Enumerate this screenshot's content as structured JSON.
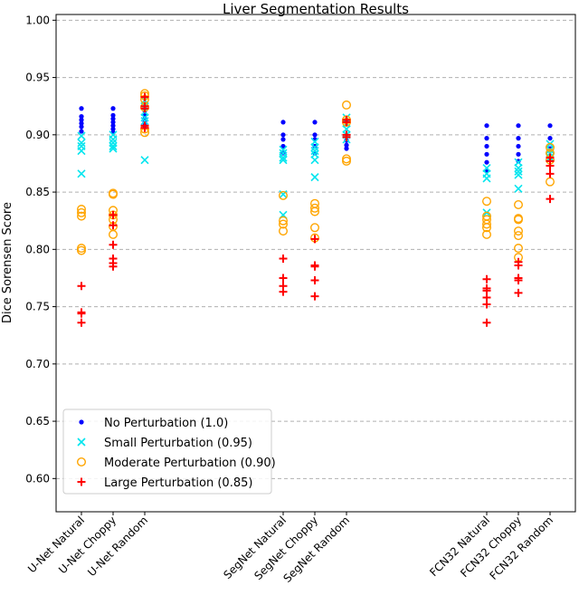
{
  "chart_data": {
    "type": "scatter",
    "title": "Liver Segmentation Results",
    "xlabel": "",
    "ylabel": "Dice Sorensen Score",
    "ylim": [
      0.571,
      1.005
    ],
    "yticks": [
      "0.60",
      "0.65",
      "0.70",
      "0.75",
      "0.80",
      "0.85",
      "0.90",
      "0.95",
      "1.00"
    ],
    "grid": "horizontal dashed",
    "legend_position": "bottom-left",
    "categories": [
      "U-Net Natural",
      "U-Net Choppy",
      "U-Net Random",
      "SegNet Natural",
      "SegNet Choppy",
      "SegNet Random",
      "FCN32 Natural",
      "FCN32 Choppy",
      "FCN32 Random"
    ],
    "series": [
      {
        "name": "No Perturbation (1.0)",
        "marker": "dot",
        "color": "#0000ff",
        "values": [
          [
            0.923,
            0.916,
            0.913,
            0.91,
            0.907,
            0.903
          ],
          [
            0.923,
            0.917,
            0.914,
            0.911,
            0.908,
            0.905,
            0.902
          ],
          [
            0.921,
            0.918,
            0.914,
            0.911,
            0.908
          ],
          [
            0.911,
            0.9,
            0.896,
            0.89,
            0.884
          ],
          [
            0.911,
            0.9,
            0.896,
            0.89,
            0.884
          ],
          [
            0.912,
            0.895,
            0.891,
            0.888
          ],
          [
            0.908,
            0.897,
            0.89,
            0.883,
            0.876,
            0.869
          ],
          [
            0.908,
            0.897,
            0.89,
            0.883,
            0.877
          ],
          [
            0.908,
            0.897,
            0.888
          ]
        ]
      },
      {
        "name": "Small Perturbation (0.95)",
        "marker": "x",
        "color": "#00e5ee",
        "values": [
          [
            0.899,
            0.893,
            0.89,
            0.886,
            0.866
          ],
          [
            0.9,
            0.896,
            0.893,
            0.89,
            0.888
          ],
          [
            0.93,
            0.925,
            0.92,
            0.915,
            0.912,
            0.878
          ],
          [
            0.887,
            0.884,
            0.88,
            0.878,
            0.848,
            0.83
          ],
          [
            0.894,
            0.889,
            0.886,
            0.883,
            0.878,
            0.863
          ],
          [
            0.915,
            0.91,
            0.905,
            0.9,
            0.896
          ],
          [
            0.871,
            0.866,
            0.862,
            0.832
          ],
          [
            0.876,
            0.871,
            0.868,
            0.865,
            0.853
          ],
          [
            0.892,
            0.887,
            0.884,
            0.88
          ]
        ]
      },
      {
        "name": "Moderate Perturbation (0.90)",
        "marker": "circle",
        "color": "#ffa500",
        "values": [
          [
            0.835,
            0.832,
            0.829,
            0.801,
            0.799
          ],
          [
            0.849,
            0.848,
            0.834,
            0.83,
            0.826,
            0.82,
            0.813
          ],
          [
            0.936,
            0.934,
            0.931,
            0.924,
            0.905,
            0.902
          ],
          [
            0.847,
            0.825,
            0.822,
            0.816
          ],
          [
            0.84,
            0.836,
            0.833,
            0.819,
            0.81
          ],
          [
            0.926,
            0.913,
            0.911,
            0.879,
            0.877
          ],
          [
            0.842,
            0.829,
            0.826,
            0.822,
            0.819,
            0.813
          ],
          [
            0.839,
            0.827,
            0.826,
            0.816,
            0.812,
            0.801,
            0.793
          ],
          [
            0.889,
            0.884,
            0.878,
            0.859
          ]
        ]
      },
      {
        "name": "Large Perturbation (0.85)",
        "marker": "plus",
        "color": "#ff0000",
        "values": [
          [
            0.768,
            0.745,
            0.744,
            0.736
          ],
          [
            0.83,
            0.821,
            0.804,
            0.792,
            0.788,
            0.785
          ],
          [
            0.933,
            0.925,
            0.923,
            0.908,
            0.906
          ],
          [
            0.792,
            0.775,
            0.768,
            0.763
          ],
          [
            0.809,
            0.786,
            0.785,
            0.773,
            0.759
          ],
          [
            0.913,
            0.911,
            0.9,
            0.898
          ],
          [
            0.774,
            0.766,
            0.764,
            0.758,
            0.752,
            0.736
          ],
          [
            0.789,
            0.786,
            0.775,
            0.773,
            0.762
          ],
          [
            0.88,
            0.877,
            0.873,
            0.866,
            0.844
          ]
        ]
      }
    ]
  }
}
